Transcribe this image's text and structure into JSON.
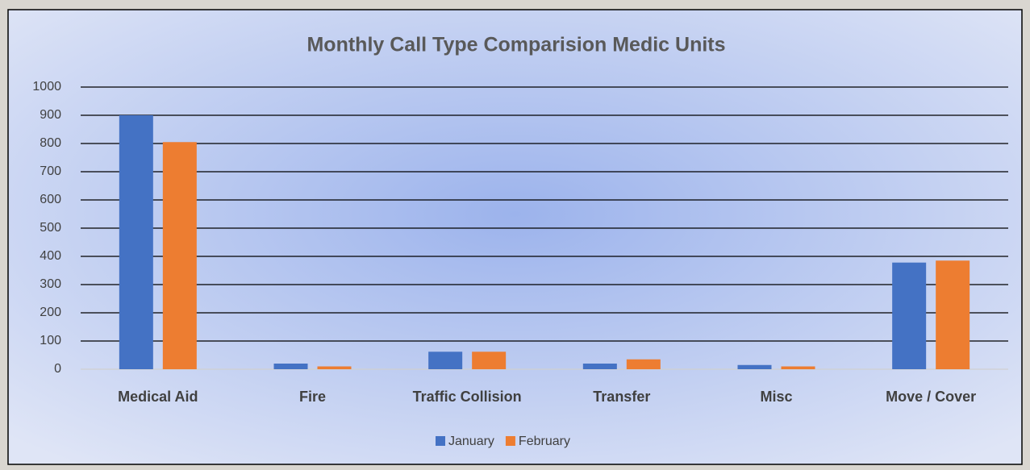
{
  "chart_data": {
    "type": "bar",
    "title": "Monthly Call Type Comparision Medic Units",
    "categories": [
      "Medical Aid",
      "Fire",
      "Traffic Collision",
      "Transfer",
      "Misc",
      "Move / Cover"
    ],
    "series": [
      {
        "name": "January",
        "color": "#4472c4",
        "values": [
          900,
          20,
          62,
          20,
          15,
          378
        ]
      },
      {
        "name": "February",
        "color": "#ed7d31",
        "values": [
          805,
          10,
          62,
          35,
          10,
          385
        ]
      }
    ],
    "ylim": [
      0,
      1000
    ],
    "yticks": [
      0,
      100,
      200,
      300,
      400,
      500,
      600,
      700,
      800,
      900,
      1000
    ],
    "grid": true,
    "legend": "bottom"
  }
}
